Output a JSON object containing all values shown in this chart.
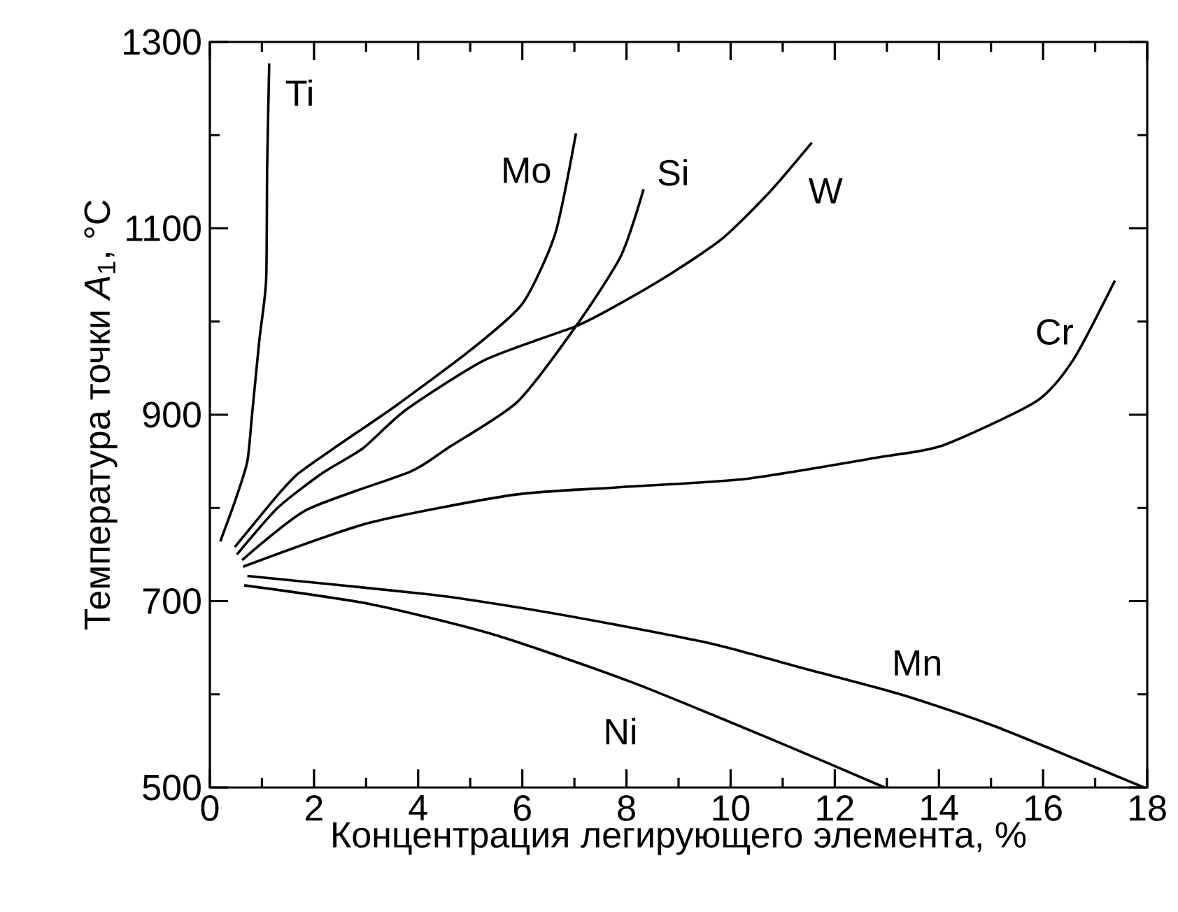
{
  "chart_data": {
    "type": "line",
    "xlabel": "Концентрация легирующего элемента, %",
    "ylabel": "Температура точки *A*$_{1}$,  °C",
    "xlim": [
      0,
      18
    ],
    "ylim": [
      500,
      1300
    ],
    "xticks": [
      0,
      2,
      4,
      6,
      8,
      10,
      12,
      14,
      16,
      18
    ],
    "yticks": [
      500,
      700,
      900,
      1100,
      1300
    ],
    "series": [
      {
        "name": "Ti",
        "color": "#000000",
        "x": [
          0.2,
          0.5,
          0.72,
          0.81,
          0.95,
          1.08,
          1.1,
          1.14
        ],
        "values": [
          764,
          810,
          850,
          900,
          980,
          1044,
          1164,
          1277
        ]
      },
      {
        "name": "Mo",
        "color": "#000000",
        "x": [
          0.48,
          1.26,
          1.7,
          2.51,
          3.58,
          5.02,
          6.0,
          6.63,
          7.03
        ],
        "values": [
          758,
          811,
          837,
          869,
          910,
          970,
          1019,
          1094,
          1202
        ]
      },
      {
        "name": "Si",
        "color": "#000000",
        "x": [
          0.62,
          1.86,
          3.85,
          4.56,
          5.91,
          7.03,
          7.89,
          8.33
        ],
        "values": [
          744,
          798,
          839,
          864,
          914,
          995,
          1070,
          1142
        ]
      },
      {
        "name": "W",
        "color": "#000000",
        "x": [
          0.52,
          1.3,
          2.15,
          2.94,
          3.76,
          5.29,
          7.03,
          7.8,
          8.87,
          9.86,
          10.75,
          11.56
        ],
        "values": [
          750,
          800,
          837,
          864,
          905,
          959,
          995,
          1017,
          1052,
          1090,
          1139,
          1192
        ]
      },
      {
        "name": "Cr",
        "color": "#000000",
        "x": [
          0.64,
          3.06,
          5.82,
          7.8,
          10.26,
          12.81,
          14.07,
          15.86,
          16.58,
          17.38
        ],
        "values": [
          737,
          784,
          814,
          822,
          831,
          854,
          867,
          914,
          959,
          1044
        ]
      },
      {
        "name": "Mn",
        "color": "#000000",
        "x": [
          0.72,
          4.26,
          6.06,
          7.86,
          9.66,
          11.46,
          13.26,
          15.06,
          17.94
        ],
        "values": [
          727,
          707,
          692,
          674,
          654,
          627,
          600,
          566,
          500
        ]
      },
      {
        "name": "Ni",
        "color": "#000000",
        "x": [
          0.66,
          3.06,
          5.46,
          8.1,
          10.86,
          12.96
        ],
        "values": [
          717,
          697,
          664,
          613,
          550,
          500
        ]
      }
    ]
  }
}
